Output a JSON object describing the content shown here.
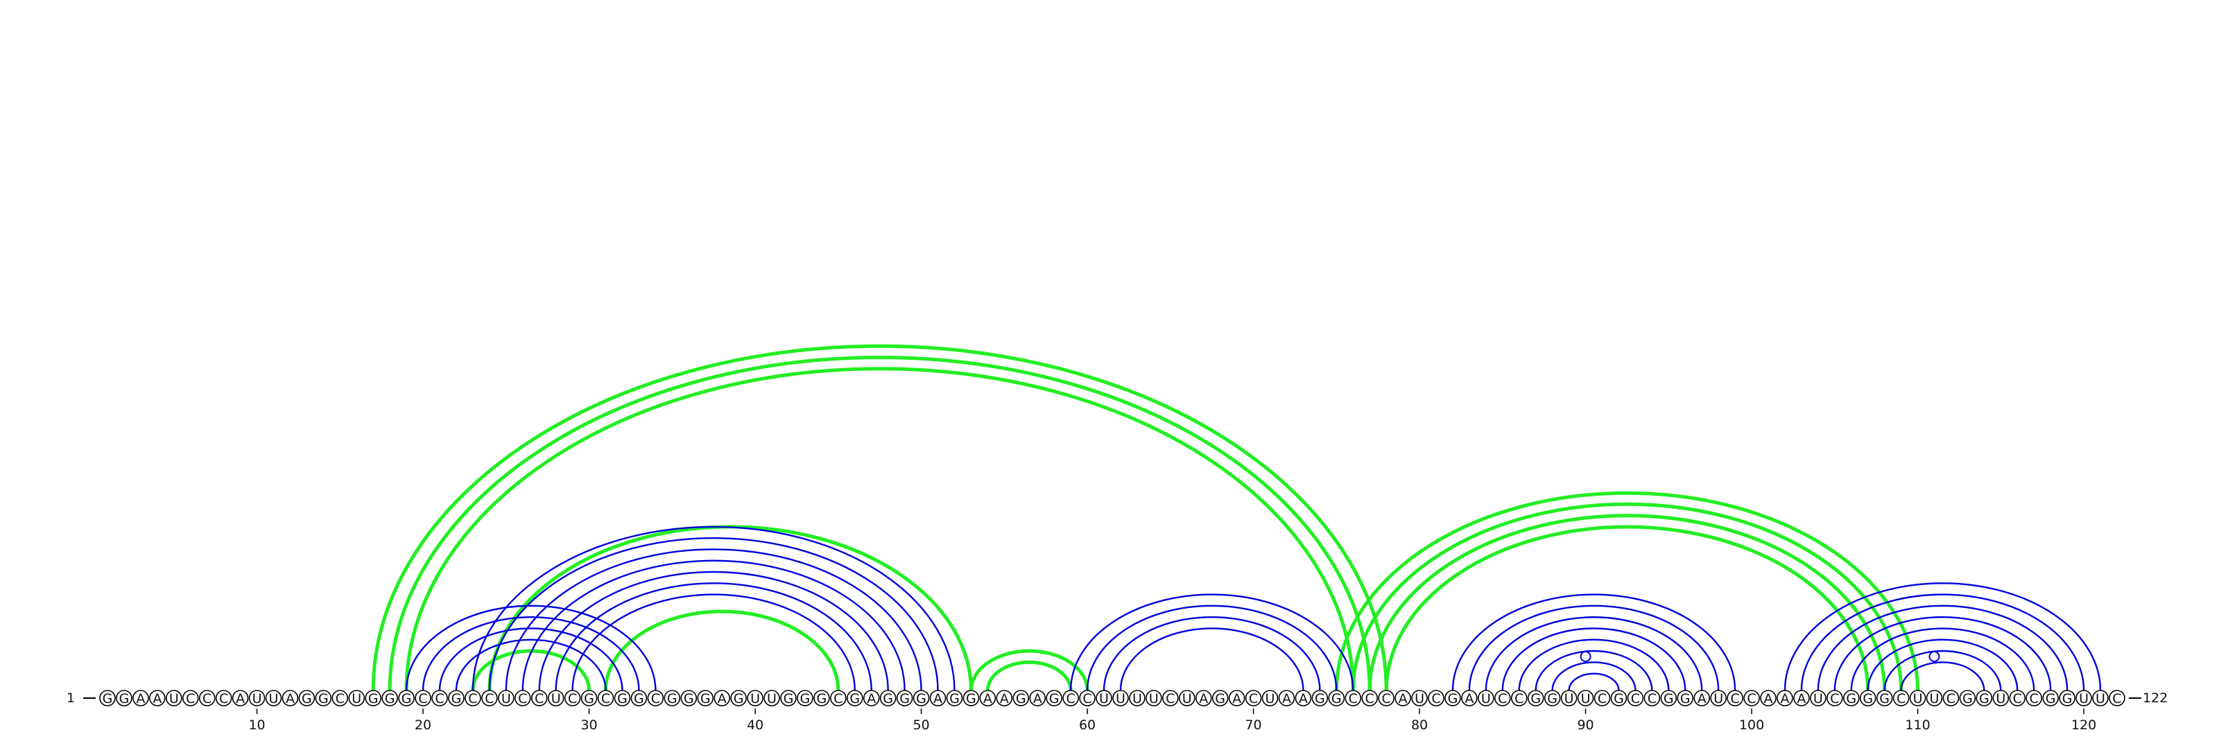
{
  "diagram": {
    "sequence": "GGAAUCCCAUUAGGCUGGGCCGCCUCCUCGCGGCGGGAGUUGGGCGAGGGAGGAAGAGCCUUUUCUAGACUAAGGCCCAUCGAUCCGGUUCGCCGGAUCCAAAUCGGGCUUCGGUCCGGUUC",
    "start_label": "1",
    "end_label": "122",
    "tick_positions": [
      10,
      20,
      30,
      40,
      50,
      60,
      70,
      80,
      90,
      100,
      110,
      120
    ],
    "colors": {
      "structure_a": "#0000dd",
      "structure_b": "#22ee22",
      "backbone": "#000000"
    },
    "blue_arc_groups": [
      {
        "i": 19,
        "j": 34,
        "n": 4
      },
      {
        "i": 23,
        "j": 52,
        "n": 7
      },
      {
        "i": 59,
        "j": 76,
        "n": 4
      },
      {
        "i": 82,
        "j": 99,
        "n": 8
      },
      {
        "i": 102,
        "j": 121,
        "n": 8
      }
    ],
    "green_arc_groups": [
      {
        "i": 17,
        "j": 78,
        "n": 3
      },
      {
        "i": 24,
        "j": 53,
        "n": 1
      },
      {
        "i": 31,
        "j": 45,
        "n": 1
      },
      {
        "i": 23,
        "j": 30,
        "n": 1
      },
      {
        "i": 53,
        "j": 60,
        "n": 2
      },
      {
        "i": 75,
        "j": 110,
        "n": 4
      }
    ],
    "hairpin_loop_positions": [
      90,
      111
    ]
  }
}
